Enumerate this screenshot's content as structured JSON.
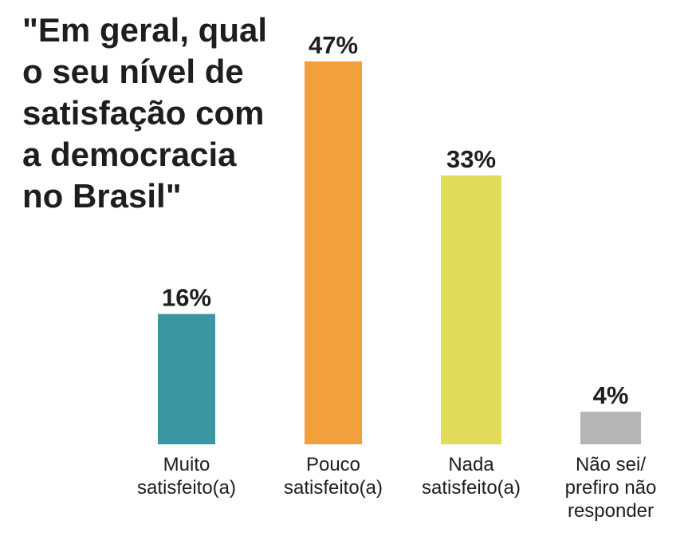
{
  "chart_data": {
    "type": "bar",
    "title_lines": [
      "\"Em geral, qual",
      "o seu nível de",
      "satisfação com",
      "a democracia",
      "no Brasil\""
    ],
    "categories": [
      [
        "Muito",
        "satisfeito(a)"
      ],
      [
        "Pouco",
        "satisfeito(a)"
      ],
      [
        "Nada",
        "satisfeito(a)"
      ],
      [
        "Não sei/",
        "prefiro não",
        "responder"
      ]
    ],
    "values": [
      16,
      47,
      33,
      4
    ],
    "value_labels": [
      "16%",
      "47%",
      "33%",
      "4%"
    ],
    "colors": [
      "#3a96a3",
      "#f2a03d",
      "#e0db5a",
      "#b5b5b5"
    ],
    "ylim": [
      0,
      47
    ],
    "grid": false,
    "xlabel": "",
    "ylabel": ""
  }
}
